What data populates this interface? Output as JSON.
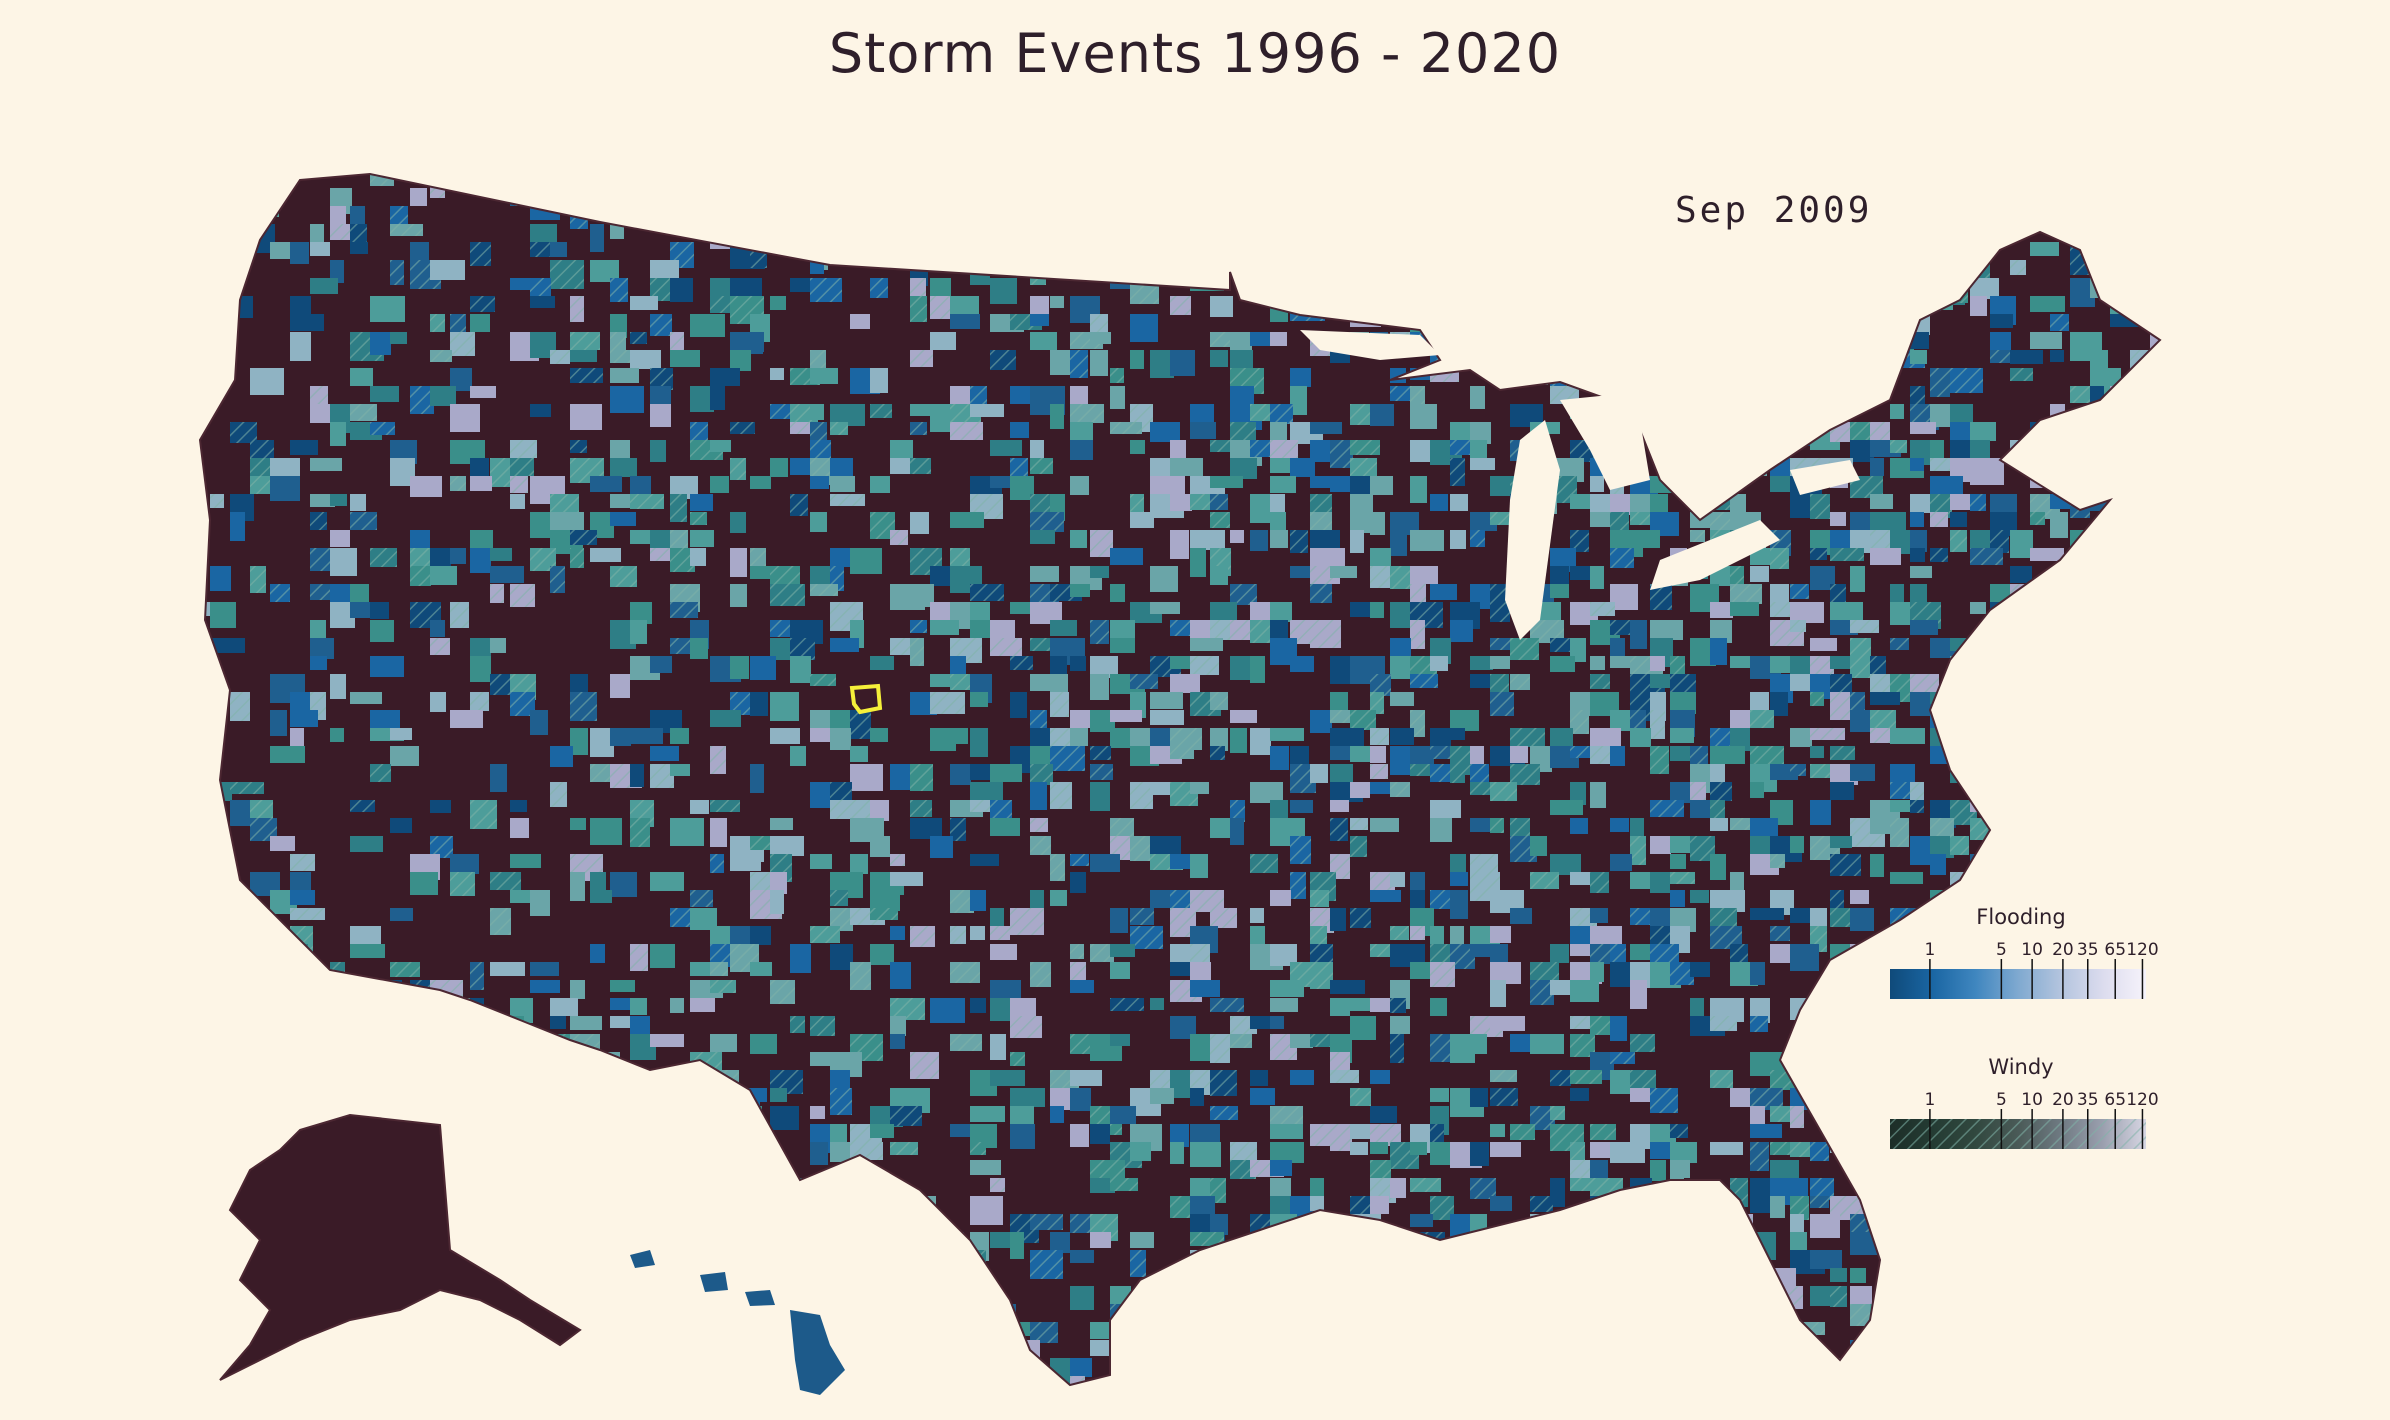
{
  "title": "Storm Events 1996 - 2020",
  "date_label": "Sep 2009",
  "colors": {
    "background": "#fdf5e6",
    "land_base": "#3a1b27",
    "county_border": "#4c2732",
    "highlight": "#f5f03a"
  },
  "legends": {
    "flooding": {
      "title": "Flooding",
      "ticks": [
        "1",
        "5",
        "10",
        "20",
        "35",
        "65",
        "120"
      ],
      "colors": [
        "#0f4a7a",
        "#1a66a3",
        "#3f86bf",
        "#7fa9d0",
        "#b3c4de",
        "#dcdcee",
        "#f6f3fb"
      ]
    },
    "windy": {
      "title": "Windy",
      "ticks": [
        "1",
        "5",
        "10",
        "20",
        "35",
        "65",
        "120"
      ],
      "colors": [
        "#1d2e28",
        "#243b33",
        "#31483f",
        "#4a5a57",
        "#6f7a82",
        "#9ba0af",
        "#d7d6e3"
      ]
    }
  },
  "map_fill_palette": [
    "#0f4a7a",
    "#1a66a3",
    "#1f5f8f",
    "#2e7e86",
    "#3a8f8a",
    "#4d9d9a",
    "#6aa5a8",
    "#8fb3c3",
    "#a9a9c9"
  ]
}
